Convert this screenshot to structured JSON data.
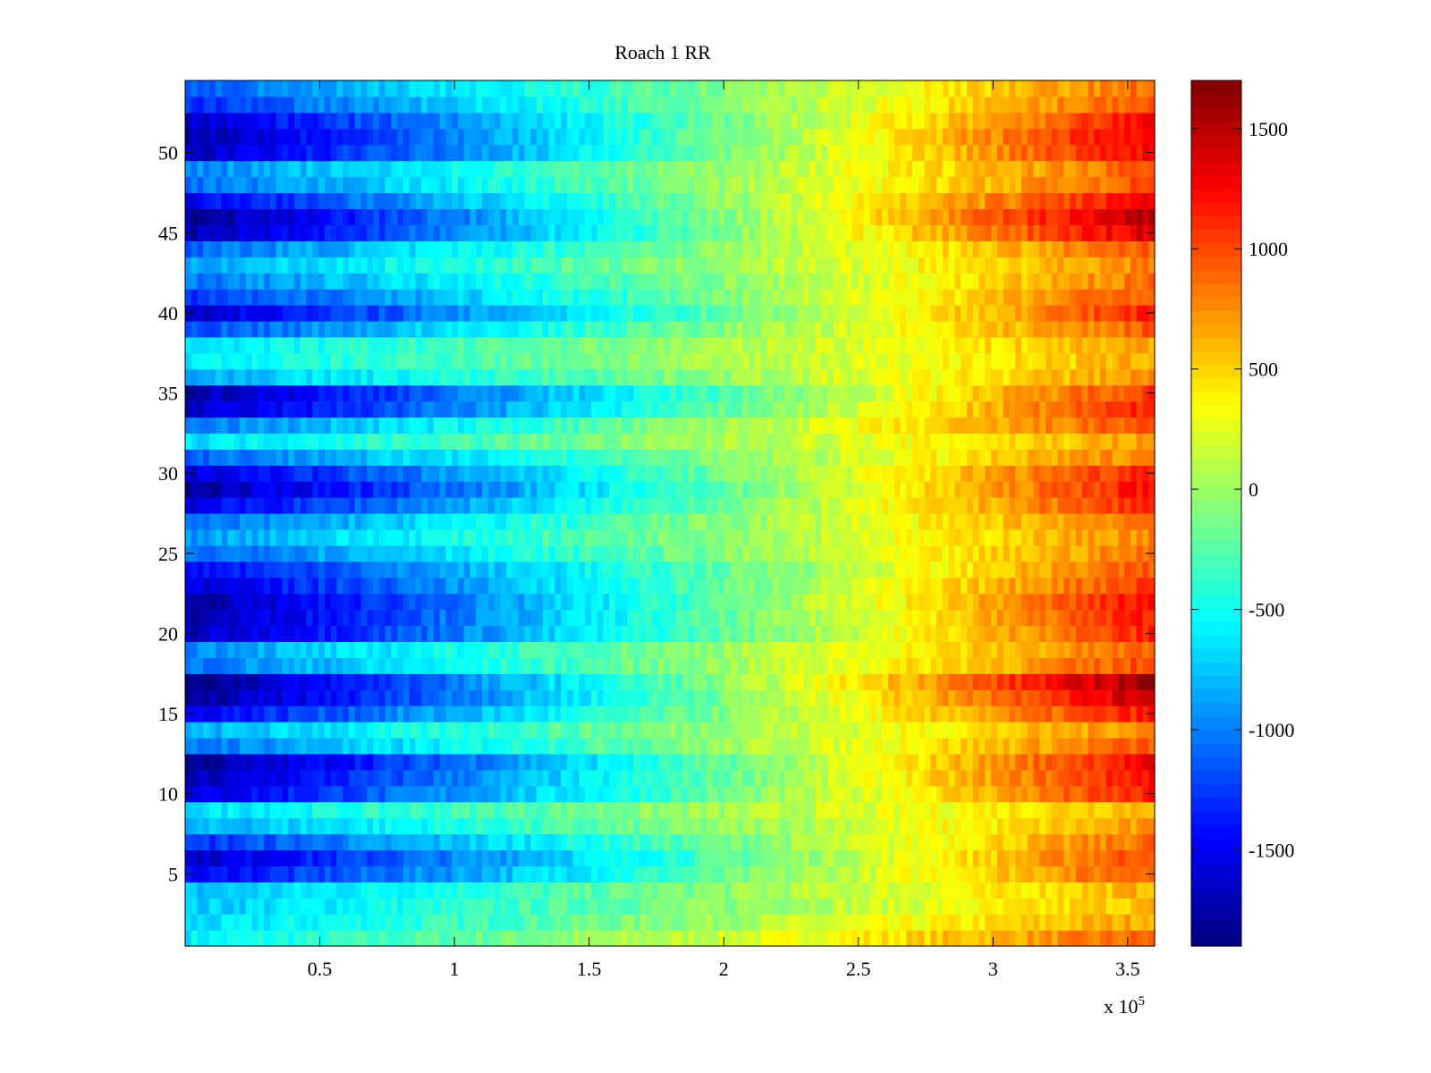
{
  "chart_data": {
    "type": "heatmap",
    "title": "Roach 1 RR",
    "xlabel": "",
    "ylabel": "",
    "x_exponent_label": "x 10",
    "x_exponent_sup": "5",
    "x_tick_values": [
      0.5,
      1,
      1.5,
      2,
      2.5,
      3,
      3.5
    ],
    "x_tick_labels": [
      "0.5",
      "1",
      "1.5",
      "2",
      "2.5",
      "3",
      "3.5"
    ],
    "xlim": [
      0,
      360000
    ],
    "y_tick_values": [
      5,
      10,
      15,
      20,
      25,
      30,
      35,
      40,
      45,
      50
    ],
    "y_tick_labels": [
      "5",
      "10",
      "15",
      "20",
      "25",
      "30",
      "35",
      "40",
      "45",
      "50"
    ],
    "ylim": [
      0.5,
      54.5
    ],
    "rows": 54,
    "colormap": "jet",
    "colorbar": {
      "range": [
        -1900,
        1700
      ],
      "tick_values": [
        1500,
        1000,
        500,
        0,
        -500,
        -1000,
        -1500
      ],
      "tick_labels": [
        "1500",
        "1000",
        "500",
        "0",
        "-500",
        "-1000",
        "-1500"
      ]
    },
    "start_values": [
      -600,
      -700,
      -750,
      -800,
      -1500,
      -1650,
      -1300,
      -850,
      -650,
      -1600,
      -1750,
      -1850,
      -1050,
      -850,
      -1500,
      -1850,
      -1900,
      -1050,
      -950,
      -1700,
      -1750,
      -1800,
      -1600,
      -1450,
      -1100,
      -900,
      -1100,
      -1550,
      -1800,
      -1600,
      -1100,
      -650,
      -1050,
      -1700,
      -1750,
      -850,
      -600,
      -650,
      -1200,
      -1650,
      -1300,
      -1050,
      -850,
      -1100,
      -1750,
      -1850,
      -1500,
      -1100,
      -1000,
      -1700,
      -1750,
      -1650,
      -1300,
      -1150
    ],
    "end_values": [
      900,
      700,
      600,
      650,
      1000,
      1050,
      900,
      700,
      650,
      1150,
      1250,
      1300,
      950,
      800,
      1200,
      1500,
      1650,
      1000,
      900,
      1150,
      1200,
      1250,
      1100,
      950,
      850,
      800,
      900,
      1150,
      1250,
      1200,
      850,
      700,
      1000,
      1150,
      1100,
      750,
      650,
      700,
      950,
      1150,
      1000,
      850,
      800,
      950,
      1400,
      1550,
      1300,
      1000,
      950,
      1300,
      1350,
      1250,
      1000,
      900
    ]
  }
}
